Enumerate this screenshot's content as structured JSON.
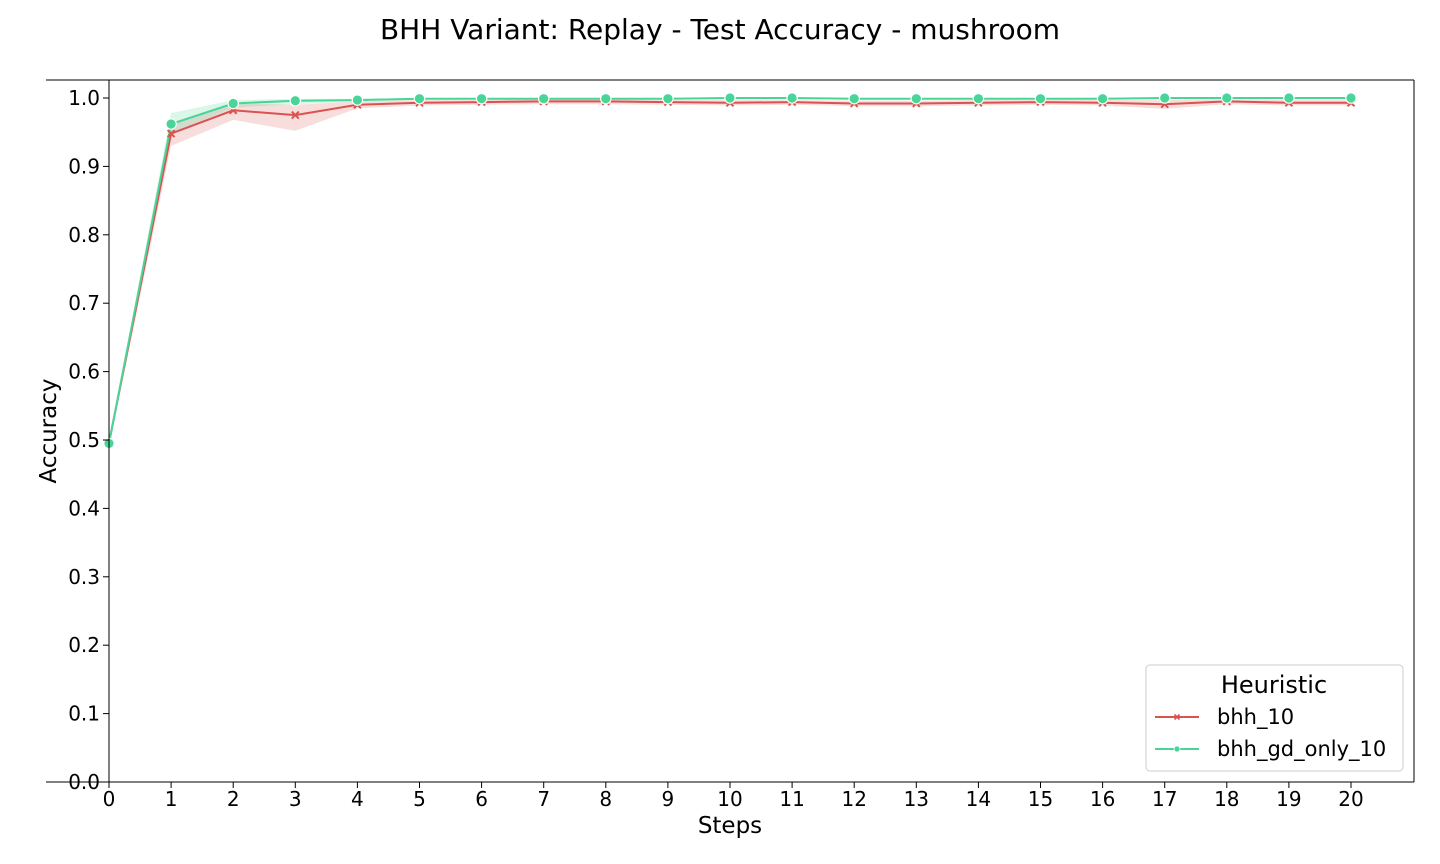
{
  "chart_data": {
    "type": "line",
    "title": "BHH Variant: Replay - Test Accuracy - mushroom",
    "xlabel": "Steps",
    "ylabel": "Accuracy",
    "x": [
      0,
      1,
      2,
      3,
      4,
      5,
      6,
      7,
      8,
      9,
      10,
      11,
      12,
      13,
      14,
      15,
      16,
      17,
      18,
      19,
      20
    ],
    "xlim": [
      -0.02,
      21
    ],
    "ylim": [
      0.0,
      1.025
    ],
    "x_ticks": [
      "0",
      "1",
      "2",
      "3",
      "4",
      "5",
      "6",
      "7",
      "8",
      "9",
      "10",
      "11",
      "12",
      "13",
      "14",
      "15",
      "16",
      "17",
      "18",
      "19",
      "20"
    ],
    "y_ticks": [
      "0.0",
      "0.1",
      "0.2",
      "0.3",
      "0.4",
      "0.5",
      "0.6",
      "0.7",
      "0.8",
      "0.9",
      "1.0"
    ],
    "grid": false,
    "legend": {
      "title": "Heuristic",
      "placement": "bottom-right"
    },
    "series": [
      {
        "name": "bhh_10",
        "color": "#d9534f",
        "marker": "x",
        "values": [
          0.496,
          0.948,
          0.982,
          0.975,
          0.99,
          0.993,
          0.994,
          0.995,
          0.995,
          0.994,
          0.993,
          0.994,
          0.992,
          0.992,
          0.993,
          0.994,
          0.993,
          0.991,
          0.995,
          0.993,
          0.993
        ],
        "ci_low": [
          0.49,
          0.93,
          0.968,
          0.952,
          0.985,
          0.989,
          0.99,
          0.991,
          0.991,
          0.99,
          0.989,
          0.99,
          0.988,
          0.988,
          0.989,
          0.99,
          0.989,
          0.984,
          0.991,
          0.989,
          0.989
        ],
        "ci_high": [
          0.503,
          0.962,
          0.992,
          0.99,
          0.995,
          0.997,
          0.997,
          0.998,
          0.998,
          0.997,
          0.997,
          0.997,
          0.996,
          0.996,
          0.997,
          0.997,
          0.997,
          0.997,
          0.998,
          0.997,
          0.997
        ]
      },
      {
        "name": "bhh_gd_only_10",
        "color": "#48d597",
        "marker": "o",
        "values": [
          0.495,
          0.962,
          0.992,
          0.996,
          0.997,
          0.999,
          0.999,
          0.999,
          0.999,
          0.999,
          1.0,
          1.0,
          0.999,
          0.999,
          0.999,
          0.999,
          0.999,
          1.0,
          1.0,
          1.0,
          1.0
        ],
        "ci_low": [
          0.489,
          0.948,
          0.986,
          0.991,
          0.995,
          0.998,
          0.998,
          0.998,
          0.998,
          0.998,
          0.999,
          0.999,
          0.998,
          0.998,
          0.998,
          0.998,
          0.998,
          0.999,
          0.999,
          0.999,
          0.999
        ],
        "ci_high": [
          0.501,
          0.978,
          0.997,
          0.999,
          0.999,
          1.0,
          1.0,
          1.0,
          1.0,
          1.0,
          1.0,
          1.0,
          1.0,
          1.0,
          1.0,
          1.0,
          1.0,
          1.0,
          1.0,
          1.0,
          1.0
        ]
      }
    ]
  }
}
